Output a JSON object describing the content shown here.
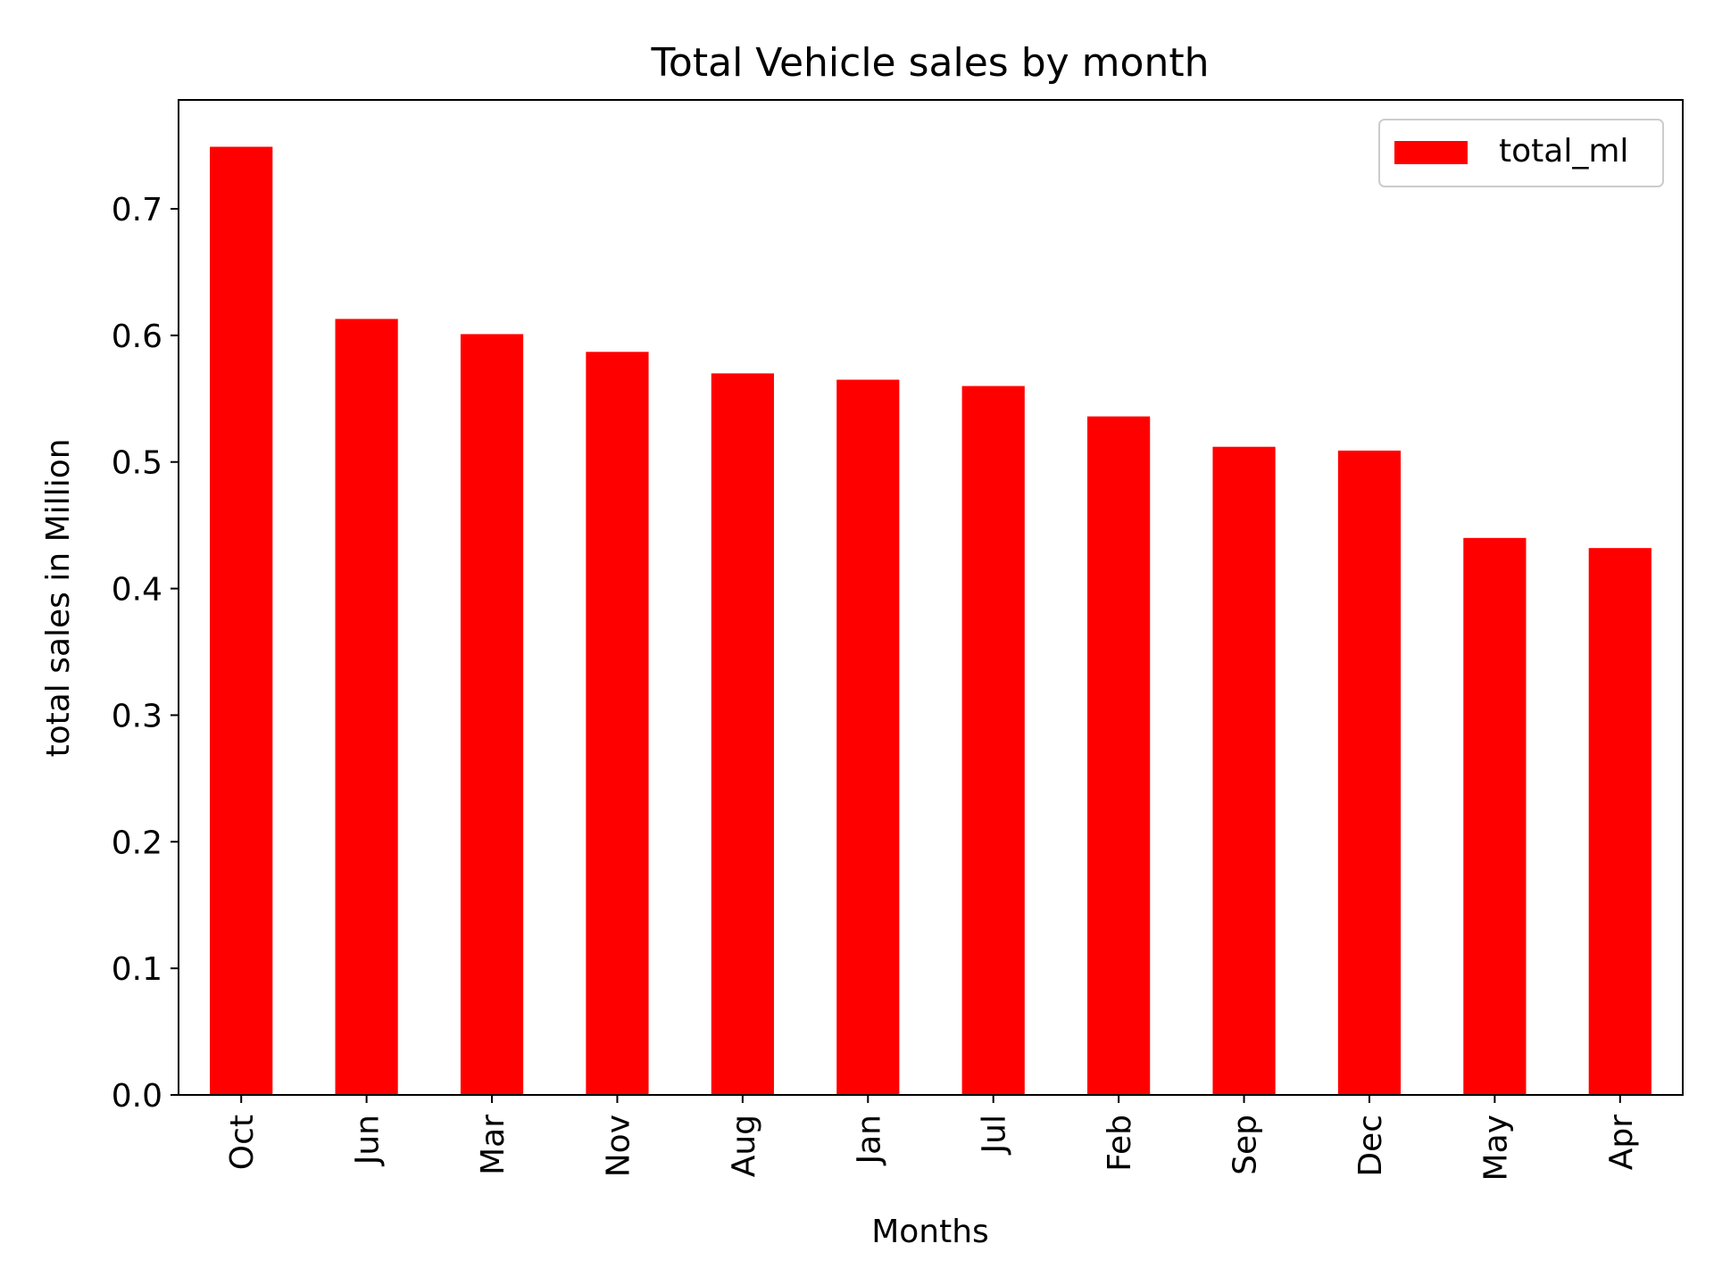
{
  "chart_data": {
    "type": "bar",
    "title": "Total Vehicle sales by month",
    "xlabel": "Months",
    "ylabel": "total sales in Million",
    "categories": [
      "Oct",
      "Jun",
      "Mar",
      "Nov",
      "Aug",
      "Jan",
      "Jul",
      "Feb",
      "Sep",
      "Dec",
      "May",
      "Apr"
    ],
    "series": [
      {
        "name": "total_ml",
        "values": [
          0.749,
          0.613,
          0.601,
          0.587,
          0.57,
          0.565,
          0.56,
          0.536,
          0.512,
          0.509,
          0.44,
          0.432
        ],
        "color": "#ff0000"
      }
    ],
    "ylim": [
      0,
      0.786
    ],
    "yticks": [
      0.0,
      0.1,
      0.2,
      0.3,
      0.4,
      0.5,
      0.6,
      0.7
    ],
    "ytick_labels": [
      "0.0",
      "0.1",
      "0.2",
      "0.3",
      "0.4",
      "0.5",
      "0.6",
      "0.7"
    ],
    "grid": false,
    "legend_position": "top-right"
  }
}
